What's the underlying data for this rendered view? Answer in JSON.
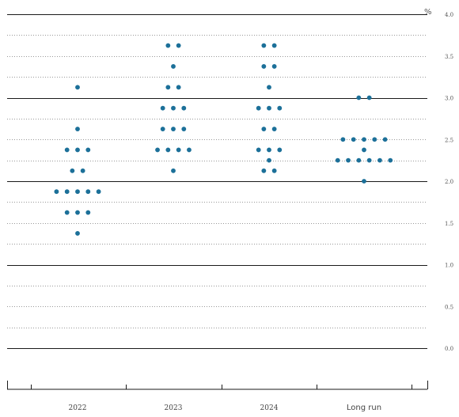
{
  "chart_data": {
    "type": "scatter",
    "unit_label": "%",
    "y_ticks": [
      "0.0",
      "0.5",
      "1.0",
      "1.5",
      "2.0",
      "2.5",
      "3.0",
      "3.5",
      "4.0"
    ],
    "ylim": [
      0,
      4
    ],
    "categories": [
      "2022",
      "2023",
      "2024",
      "Long run"
    ],
    "dot_color": "#1c7099",
    "grid": "solid major lines at whole percents, dotted lines every 0.25",
    "points": [
      {
        "x": "2022",
        "y": 3.125,
        "count": 1
      },
      {
        "x": "2022",
        "y": 2.625,
        "count": 1
      },
      {
        "x": "2022",
        "y": 2.375,
        "count": 3
      },
      {
        "x": "2022",
        "y": 2.125,
        "count": 2
      },
      {
        "x": "2022",
        "y": 1.875,
        "count": 5
      },
      {
        "x": "2022",
        "y": 1.625,
        "count": 3
      },
      {
        "x": "2022",
        "y": 1.375,
        "count": 1
      },
      {
        "x": "2023",
        "y": 3.625,
        "count": 2
      },
      {
        "x": "2023",
        "y": 3.375,
        "count": 1
      },
      {
        "x": "2023",
        "y": 3.125,
        "count": 2
      },
      {
        "x": "2023",
        "y": 2.875,
        "count": 3
      },
      {
        "x": "2023",
        "y": 2.625,
        "count": 3
      },
      {
        "x": "2023",
        "y": 2.375,
        "count": 4
      },
      {
        "x": "2023",
        "y": 2.125,
        "count": 1
      },
      {
        "x": "2024",
        "y": 3.625,
        "count": 2
      },
      {
        "x": "2024",
        "y": 3.375,
        "count": 2
      },
      {
        "x": "2024",
        "y": 3.125,
        "count": 1
      },
      {
        "x": "2024",
        "y": 2.875,
        "count": 3
      },
      {
        "x": "2024",
        "y": 2.625,
        "count": 2
      },
      {
        "x": "2024",
        "y": 2.375,
        "count": 3
      },
      {
        "x": "2024",
        "y": 2.25,
        "count": 1
      },
      {
        "x": "2024",
        "y": 2.125,
        "count": 2
      },
      {
        "x": "Long run",
        "y": 3.0,
        "count": 2
      },
      {
        "x": "Long run",
        "y": 2.5,
        "count": 5
      },
      {
        "x": "Long run",
        "y": 2.375,
        "count": 1
      },
      {
        "x": "Long run",
        "y": 2.25,
        "count": 6
      },
      {
        "x": "Long run",
        "y": 2.0,
        "count": 1
      }
    ]
  }
}
